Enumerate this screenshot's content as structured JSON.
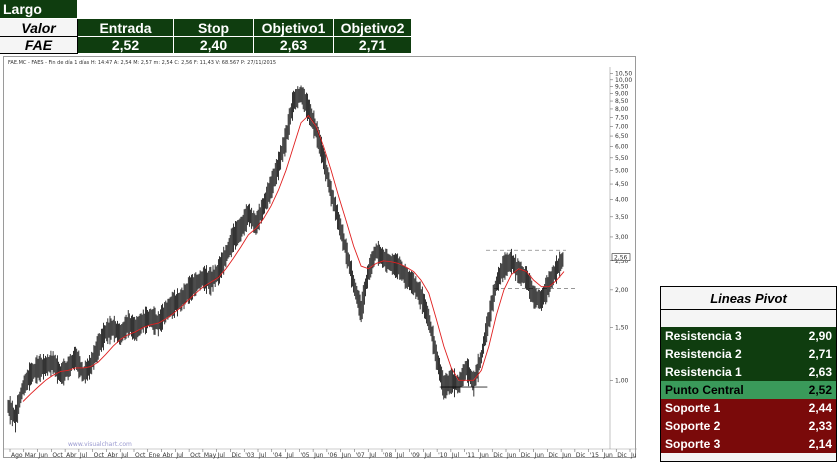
{
  "trade_table": {
    "direction": "Largo",
    "row_label_header": "Valor",
    "symbol": "FAE",
    "columns": [
      "Entrada",
      "Stop",
      "Objetivo1",
      "Objetivo2"
    ],
    "values": [
      "2,52",
      "2,40",
      "2,63",
      "2,71"
    ]
  },
  "chart_header": "FAE.MC - FAES - Fin de día 1 días  H: 14:47  A: 2,54  M: 2,57  m: 2,54  C: 2,56  F: 11,43  V: 68.567  P: 27/11/2015",
  "watermark": "www.visualchart.com",
  "last_price_tag": "2,56",
  "pivot": {
    "title": "Lineas Pivot",
    "rows": [
      {
        "label": "Resistencia 3",
        "value": "2,90",
        "kind": "res"
      },
      {
        "label": "Resistencia 2",
        "value": "2,71",
        "kind": "res"
      },
      {
        "label": "Resistencia 1",
        "value": "2,63",
        "kind": "res"
      },
      {
        "label": "Punto Central",
        "value": "2,52",
        "kind": "cen"
      },
      {
        "label": "Soporte 1",
        "value": "2,44",
        "kind": "sup"
      },
      {
        "label": "Soporte 2",
        "value": "2,33",
        "kind": "sup"
      },
      {
        "label": "Soporte 3",
        "value": "2,14",
        "kind": "sup"
      }
    ]
  },
  "colors": {
    "dark_green": "#0f3d0f",
    "center_green": "#3a9a5a",
    "support_red": "#7a0a0a",
    "ma_line": "#e02020",
    "price_bars": "#000000"
  },
  "chart_data": {
    "type": "line",
    "y_scale": "log",
    "ylim": [
      0.6,
      10.7
    ],
    "y_ticks": [
      "10,50",
      "10,00",
      "9,50",
      "9,00",
      "8,50",
      "8,00",
      "7,50",
      "7,00",
      "6,50",
      "6,00",
      "5,50",
      "5,00",
      "4,50",
      "4,00",
      "3,50",
      "3,00",
      "2,50",
      "2,00",
      "1,50",
      "1,00"
    ],
    "y_tick_values": [
      10.5,
      10,
      9.5,
      9,
      8.5,
      8,
      7.5,
      7,
      6.5,
      6,
      5.5,
      5,
      4.5,
      4,
      3.5,
      3,
      2.5,
      2,
      1.5,
      1
    ],
    "x_ticks": [
      "Ago",
      "Mar",
      "Jun",
      "Oct",
      "Abr",
      "Jul",
      "Oct",
      "Abr",
      "Jul",
      "Oct",
      "Ene",
      "Abr",
      "Jul",
      "Oct",
      "May",
      "Jul",
      "Dic",
      "'03",
      "Jul",
      "'04",
      "Jul",
      "'05",
      "Jun",
      "'06",
      "Jun",
      "'07",
      "Jul",
      "'08",
      "Jul",
      "'09",
      "Jul",
      "'10",
      "Jul",
      "'11",
      "Jun",
      "Dic",
      "Jun",
      "Dic",
      "Jun",
      "Dic",
      "Jun",
      "Dic",
      "'15",
      "Jun",
      "Dic",
      "Jun"
    ],
    "series": [
      {
        "values": [
          0.82,
          0.75,
          0.95,
          1.05,
          1.1,
          1.12,
          1.15,
          1.05,
          1.1,
          1.2,
          1.05,
          1.12,
          1.3,
          1.45,
          1.5,
          1.42,
          1.55,
          1.48,
          1.58,
          1.62,
          1.55,
          1.7,
          1.8,
          1.85,
          2.0,
          2.1,
          2.2,
          2.15,
          2.3,
          2.6,
          3.0,
          3.2,
          3.6,
          3.3,
          3.8,
          4.4,
          5.2,
          6.4,
          8.5,
          9.0,
          8.0,
          6.8,
          5.5,
          4.2,
          3.4,
          2.7,
          2.1,
          1.7,
          2.3,
          2.7,
          2.55,
          2.45,
          2.4,
          2.2,
          2.1,
          1.9,
          1.6,
          1.2,
          0.95,
          1.0,
          0.97,
          1.1,
          0.98,
          1.2,
          1.6,
          2.1,
          2.4,
          2.5,
          2.3,
          2.2,
          1.9,
          1.85,
          2.1,
          2.35,
          2.56
        ]
      },
      {
        "values": [
          null,
          null,
          0.85,
          0.9,
          0.95,
          1.0,
          1.04,
          1.07,
          1.08,
          1.1,
          1.1,
          1.11,
          1.15,
          1.22,
          1.3,
          1.37,
          1.42,
          1.45,
          1.5,
          1.53,
          1.55,
          1.6,
          1.67,
          1.75,
          1.85,
          1.95,
          2.05,
          2.12,
          2.2,
          2.35,
          2.55,
          2.78,
          3.05,
          3.2,
          3.45,
          3.8,
          4.3,
          5.0,
          6.0,
          7.2,
          7.6,
          7.0,
          6.0,
          5.0,
          4.1,
          3.4,
          2.8,
          2.4,
          2.35,
          2.45,
          2.5,
          2.48,
          2.45,
          2.38,
          2.3,
          2.15,
          1.95,
          1.6,
          1.3,
          1.1,
          1.0,
          1.0,
          1.0,
          1.08,
          1.3,
          1.65,
          2.0,
          2.25,
          2.35,
          2.3,
          2.15,
          2.05,
          2.05,
          2.15,
          2.3
        ]
      }
    ],
    "levels": [
      2.71,
      2.02,
      0.95
    ]
  }
}
